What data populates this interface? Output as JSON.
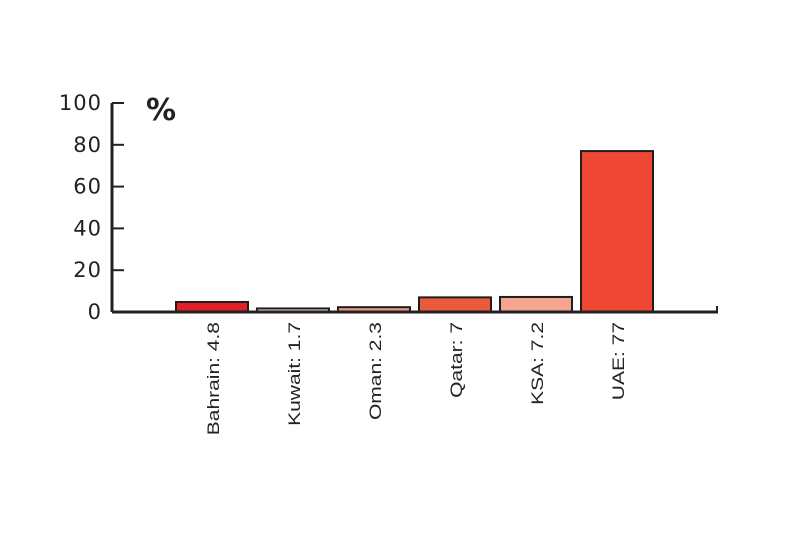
{
  "chart_data": {
    "type": "bar",
    "unit_label": "%",
    "ylim": [
      0,
      100
    ],
    "yticks": [
      "0",
      "20",
      "40",
      "60",
      "80",
      "100"
    ],
    "categories": [
      "Bahrain: 4.8",
      "Kuwait: 1.7",
      "Oman: 2.3",
      "Qatar: 7",
      "KSA: 7.2",
      "UAE: 77"
    ],
    "values": [
      4.8,
      1.7,
      2.3,
      7,
      7.2,
      77
    ],
    "bar_colors": [
      "#e01f26",
      "#f6d2c8",
      "#ef9a85",
      "#ec5a3e",
      "#f4a690",
      "#ee4734"
    ],
    "grid": false,
    "legend": "none"
  }
}
